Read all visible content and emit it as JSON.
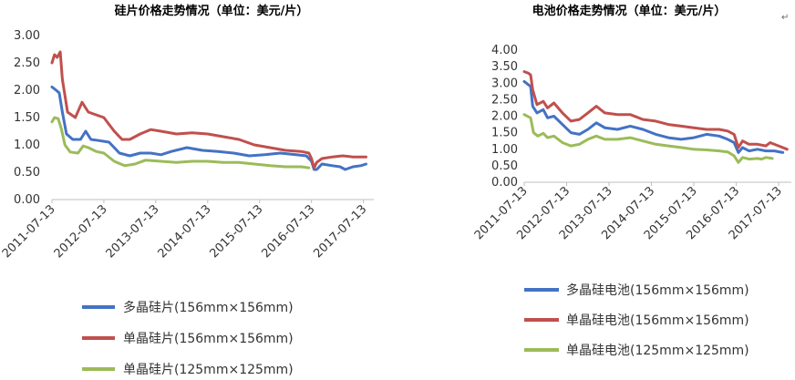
{
  "chart_data": [
    {
      "type": "line",
      "title": "硅片价格走势情况（单位：美元/片）",
      "xlabel": "",
      "ylabel": "",
      "ylim": [
        0,
        3
      ],
      "yticks": [
        "0.00",
        "0.50",
        "1.00",
        "1.50",
        "2.00",
        "2.50",
        "3.00"
      ],
      "xticks": [
        "2011-07-13",
        "2012-07-13",
        "2013-07-13",
        "2014-07-13",
        "2015-07-13",
        "2016-07-13",
        "2017-07-13"
      ],
      "legend_placement": "bottom",
      "grid": false,
      "series": [
        {
          "name": "多晶硅片(156mm×156mm)",
          "color": "#4472C4",
          "points": [
            [
              0,
              2.06
            ],
            [
              0.08,
              2.0
            ],
            [
              0.14,
              1.95
            ],
            [
              0.2,
              1.6
            ],
            [
              0.28,
              1.2
            ],
            [
              0.4,
              1.1
            ],
            [
              0.55,
              1.1
            ],
            [
              0.65,
              1.25
            ],
            [
              0.75,
              1.1
            ],
            [
              0.9,
              1.08
            ],
            [
              1.1,
              1.05
            ],
            [
              1.3,
              0.85
            ],
            [
              1.5,
              0.8
            ],
            [
              1.7,
              0.85
            ],
            [
              1.9,
              0.85
            ],
            [
              2.1,
              0.82
            ],
            [
              2.3,
              0.88
            ],
            [
              2.6,
              0.95
            ],
            [
              2.9,
              0.9
            ],
            [
              3.2,
              0.88
            ],
            [
              3.5,
              0.85
            ],
            [
              3.8,
              0.8
            ],
            [
              4.1,
              0.82
            ],
            [
              4.4,
              0.85
            ],
            [
              4.7,
              0.82
            ],
            [
              4.9,
              0.8
            ],
            [
              5.0,
              0.7
            ],
            [
              5.05,
              0.55
            ],
            [
              5.1,
              0.55
            ],
            [
              5.2,
              0.65
            ],
            [
              5.4,
              0.62
            ],
            [
              5.55,
              0.6
            ],
            [
              5.65,
              0.55
            ],
            [
              5.8,
              0.6
            ],
            [
              5.95,
              0.62
            ],
            [
              6.05,
              0.65
            ]
          ]
        },
        {
          "name": "单晶硅片(156mm×156mm)",
          "color": "#C0504D",
          "points": [
            [
              0,
              2.5
            ],
            [
              0.05,
              2.65
            ],
            [
              0.1,
              2.6
            ],
            [
              0.16,
              2.7
            ],
            [
              0.2,
              2.2
            ],
            [
              0.3,
              1.6
            ],
            [
              0.45,
              1.5
            ],
            [
              0.58,
              1.78
            ],
            [
              0.7,
              1.6
            ],
            [
              0.85,
              1.55
            ],
            [
              1.0,
              1.5
            ],
            [
              1.2,
              1.25
            ],
            [
              1.35,
              1.1
            ],
            [
              1.5,
              1.1
            ],
            [
              1.7,
              1.2
            ],
            [
              1.9,
              1.28
            ],
            [
              2.1,
              1.25
            ],
            [
              2.4,
              1.2
            ],
            [
              2.7,
              1.22
            ],
            [
              3.0,
              1.2
            ],
            [
              3.3,
              1.15
            ],
            [
              3.6,
              1.1
            ],
            [
              3.9,
              1.0
            ],
            [
              4.2,
              0.95
            ],
            [
              4.5,
              0.9
            ],
            [
              4.8,
              0.88
            ],
            [
              4.95,
              0.85
            ],
            [
              5.0,
              0.75
            ],
            [
              5.05,
              0.58
            ],
            [
              5.1,
              0.68
            ],
            [
              5.2,
              0.75
            ],
            [
              5.4,
              0.78
            ],
            [
              5.6,
              0.8
            ],
            [
              5.8,
              0.78
            ],
            [
              6.05,
              0.78
            ]
          ]
        },
        {
          "name": "单晶硅片(125mm×125mm)",
          "color": "#9BBB59",
          "points": [
            [
              0,
              1.42
            ],
            [
              0.05,
              1.5
            ],
            [
              0.12,
              1.48
            ],
            [
              0.18,
              1.3
            ],
            [
              0.25,
              1.0
            ],
            [
              0.35,
              0.87
            ],
            [
              0.5,
              0.85
            ],
            [
              0.6,
              0.98
            ],
            [
              0.7,
              0.95
            ],
            [
              0.85,
              0.88
            ],
            [
              1.0,
              0.85
            ],
            [
              1.2,
              0.7
            ],
            [
              1.4,
              0.62
            ],
            [
              1.6,
              0.65
            ],
            [
              1.8,
              0.72
            ],
            [
              2.1,
              0.7
            ],
            [
              2.4,
              0.68
            ],
            [
              2.7,
              0.7
            ],
            [
              3.0,
              0.7
            ],
            [
              3.3,
              0.68
            ],
            [
              3.6,
              0.68
            ],
            [
              3.9,
              0.65
            ],
            [
              4.2,
              0.62
            ],
            [
              4.5,
              0.6
            ],
            [
              4.8,
              0.6
            ],
            [
              4.95,
              0.58
            ]
          ]
        }
      ]
    },
    {
      "type": "line",
      "title": "电池价格走势情况（单位：美元/片）",
      "xlabel": "",
      "ylabel": "",
      "ylim": [
        0,
        4
      ],
      "yticks": [
        "0.00",
        "0.50",
        "1.00",
        "1.50",
        "2.00",
        "2.50",
        "3.00",
        "3.50",
        "4.00"
      ],
      "xticks": [
        "2011-07-13",
        "2012-07-13",
        "2013-07-13",
        "2014-07-13",
        "2015-07-13",
        "2016-07-13",
        "2017-07-13"
      ],
      "legend_placement": "bottom",
      "grid": false,
      "series": [
        {
          "name": "多晶硅电池(156mm×156mm)",
          "color": "#4472C4",
          "points": [
            [
              0,
              3.05
            ],
            [
              0.1,
              2.95
            ],
            [
              0.15,
              2.9
            ],
            [
              0.2,
              2.3
            ],
            [
              0.3,
              2.1
            ],
            [
              0.45,
              2.2
            ],
            [
              0.55,
              1.95
            ],
            [
              0.7,
              2.0
            ],
            [
              0.9,
              1.75
            ],
            [
              1.1,
              1.5
            ],
            [
              1.3,
              1.45
            ],
            [
              1.5,
              1.6
            ],
            [
              1.7,
              1.8
            ],
            [
              1.9,
              1.65
            ],
            [
              2.2,
              1.6
            ],
            [
              2.5,
              1.7
            ],
            [
              2.8,
              1.6
            ],
            [
              3.1,
              1.45
            ],
            [
              3.4,
              1.35
            ],
            [
              3.7,
              1.3
            ],
            [
              4.0,
              1.35
            ],
            [
              4.3,
              1.45
            ],
            [
              4.6,
              1.4
            ],
            [
              4.8,
              1.3
            ],
            [
              4.95,
              1.2
            ],
            [
              5.05,
              0.9
            ],
            [
              5.15,
              1.05
            ],
            [
              5.3,
              0.95
            ],
            [
              5.5,
              1.0
            ],
            [
              5.7,
              0.95
            ],
            [
              5.9,
              0.95
            ],
            [
              6.1,
              0.9
            ]
          ]
        },
        {
          "name": "单晶硅电池(156mm×156mm)",
          "color": "#C0504D",
          "points": [
            [
              0,
              3.35
            ],
            [
              0.1,
              3.3
            ],
            [
              0.15,
              3.25
            ],
            [
              0.2,
              2.8
            ],
            [
              0.3,
              2.35
            ],
            [
              0.45,
              2.45
            ],
            [
              0.55,
              2.25
            ],
            [
              0.7,
              2.4
            ],
            [
              0.9,
              2.1
            ],
            [
              1.1,
              1.85
            ],
            [
              1.3,
              1.9
            ],
            [
              1.5,
              2.1
            ],
            [
              1.7,
              2.3
            ],
            [
              1.9,
              2.1
            ],
            [
              2.2,
              2.05
            ],
            [
              2.5,
              2.05
            ],
            [
              2.8,
              1.9
            ],
            [
              3.1,
              1.85
            ],
            [
              3.4,
              1.75
            ],
            [
              3.7,
              1.7
            ],
            [
              4.0,
              1.65
            ],
            [
              4.3,
              1.6
            ],
            [
              4.6,
              1.6
            ],
            [
              4.8,
              1.55
            ],
            [
              4.95,
              1.45
            ],
            [
              5.05,
              1.05
            ],
            [
              5.15,
              1.25
            ],
            [
              5.3,
              1.15
            ],
            [
              5.5,
              1.15
            ],
            [
              5.7,
              1.1
            ],
            [
              5.8,
              1.2
            ],
            [
              6.0,
              1.1
            ],
            [
              6.2,
              1.0
            ]
          ]
        },
        {
          "name": "单晶硅电池(125mm×125mm)",
          "color": "#9BBB59",
          "points": [
            [
              0,
              2.05
            ],
            [
              0.1,
              1.98
            ],
            [
              0.15,
              1.95
            ],
            [
              0.22,
              1.5
            ],
            [
              0.32,
              1.4
            ],
            [
              0.45,
              1.48
            ],
            [
              0.55,
              1.35
            ],
            [
              0.7,
              1.4
            ],
            [
              0.9,
              1.2
            ],
            [
              1.1,
              1.1
            ],
            [
              1.3,
              1.15
            ],
            [
              1.5,
              1.3
            ],
            [
              1.7,
              1.4
            ],
            [
              1.9,
              1.3
            ],
            [
              2.2,
              1.3
            ],
            [
              2.5,
              1.35
            ],
            [
              2.8,
              1.25
            ],
            [
              3.1,
              1.15
            ],
            [
              3.4,
              1.1
            ],
            [
              3.7,
              1.05
            ],
            [
              4.0,
              1.0
            ],
            [
              4.3,
              0.98
            ],
            [
              4.6,
              0.95
            ],
            [
              4.8,
              0.92
            ],
            [
              4.95,
              0.8
            ],
            [
              5.05,
              0.6
            ],
            [
              5.15,
              0.75
            ],
            [
              5.3,
              0.7
            ],
            [
              5.5,
              0.72
            ],
            [
              5.6,
              0.7
            ],
            [
              5.7,
              0.75
            ],
            [
              5.85,
              0.72
            ]
          ]
        }
      ]
    }
  ],
  "misc": {
    "return_mark": "↵"
  }
}
